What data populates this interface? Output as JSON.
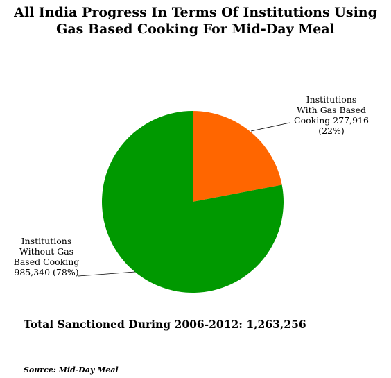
{
  "title_lines": [
    "All India Progress In Terms Of Institutions Using",
    "Gas Based Cooking For Mid-Day Meal"
  ],
  "chart_data": {
    "type": "pie",
    "title": "All India Progress In Terms Of Institutions Using Gas Based Cooking For Mid-Day Meal",
    "slices": [
      {
        "name": "Institutions With Gas Based Cooking",
        "value": 277916,
        "percent": 22,
        "color": "#ff6600",
        "label_lines": [
          "Institutions",
          "With Gas Based",
          "Cooking 277,916",
          "(22%)"
        ]
      },
      {
        "name": "Institutions Without Gas Based Cooking",
        "value": 985340,
        "percent": 78,
        "color": "#009900",
        "label_lines": [
          "Institutions",
          "Without Gas",
          "Based Cooking",
          "985,340 (78%)"
        ]
      }
    ]
  },
  "footer": {
    "total_text": "Total Sanctioned During 2006-2012: 1,263,256",
    "source_text": "Source: Mid-Day Meal"
  }
}
